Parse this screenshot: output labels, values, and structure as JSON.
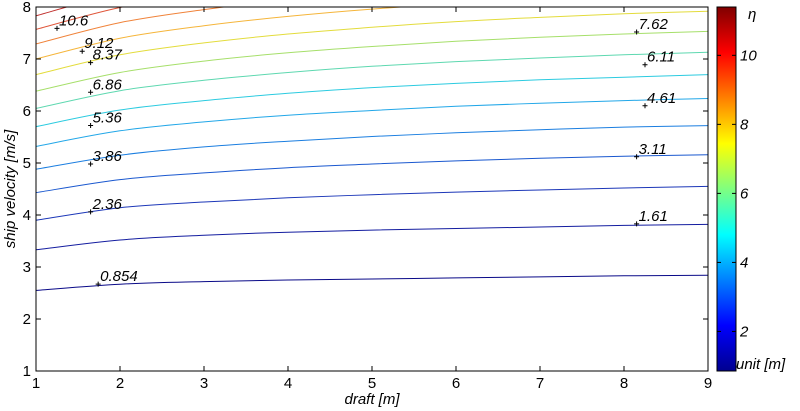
{
  "chart_data": {
    "type": "contour",
    "xlabel": "draft [m]",
    "ylabel": "ship velocity [m/s]",
    "xlim": [
      1,
      9
    ],
    "ylim": [
      1,
      8
    ],
    "x_ticks": [
      "1",
      "2",
      "3",
      "4",
      "5",
      "6",
      "7",
      "8",
      "9"
    ],
    "y_ticks": [
      "1",
      "2",
      "3",
      "4",
      "5",
      "6",
      "7",
      "8"
    ],
    "colorbar": {
      "label": "η",
      "unit_label": "unit [m]",
      "range": [
        0.854,
        11.4
      ],
      "ticks": [
        "2",
        "4",
        "6",
        "8",
        "10"
      ],
      "tick_values": [
        2,
        4,
        6,
        8,
        10
      ]
    },
    "x": [
      1,
      2,
      3,
      4,
      5,
      6,
      7,
      8,
      9
    ],
    "contours": [
      {
        "level": 0.854,
        "color": "#0a0a88",
        "y": [
          2.55,
          2.67,
          2.72,
          2.75,
          2.77,
          2.79,
          2.81,
          2.83,
          2.84
        ]
      },
      {
        "level": 1.61,
        "color": "#141da0",
        "y": [
          3.33,
          3.52,
          3.61,
          3.67,
          3.71,
          3.74,
          3.77,
          3.8,
          3.82
        ]
      },
      {
        "level": 2.36,
        "color": "#1c37b8",
        "y": [
          3.9,
          4.14,
          4.25,
          4.33,
          4.39,
          4.44,
          4.48,
          4.52,
          4.55
        ]
      },
      {
        "level": 3.11,
        "color": "#1a58cf",
        "y": [
          4.43,
          4.68,
          4.81,
          4.91,
          4.98,
          5.04,
          5.09,
          5.13,
          5.16
        ]
      },
      {
        "level": 3.86,
        "color": "#1b7ee0",
        "y": [
          4.88,
          5.15,
          5.31,
          5.42,
          5.51,
          5.58,
          5.64,
          5.69,
          5.72
        ]
      },
      {
        "level": 4.61,
        "color": "#22a7e8",
        "y": [
          5.32,
          5.62,
          5.79,
          5.92,
          6.01,
          6.09,
          6.15,
          6.2,
          6.24
        ]
      },
      {
        "level": 5.36,
        "color": "#2ccbe0",
        "y": [
          5.7,
          6.02,
          6.2,
          6.34,
          6.45,
          6.53,
          6.6,
          6.65,
          6.7
        ]
      },
      {
        "level": 6.11,
        "color": "#5ed8b0",
        "y": [
          6.05,
          6.39,
          6.59,
          6.74,
          6.86,
          6.95,
          7.02,
          7.08,
          7.13
        ]
      },
      {
        "level": 6.86,
        "color": "#a6df6a",
        "y": [
          6.38,
          6.74,
          6.96,
          7.12,
          7.24,
          7.34,
          7.42,
          7.48,
          7.53
        ]
      },
      {
        "level": 7.62,
        "color": "#e3dc3c",
        "y": [
          6.7,
          7.08,
          7.31,
          7.48,
          7.61,
          7.72,
          7.8,
          7.87,
          7.92
        ]
      },
      {
        "level": 8.37,
        "color": "#f5b53a",
        "y": [
          7.0,
          7.4,
          7.64,
          7.82,
          7.96,
          8.07,
          8.16,
          8.23,
          8.29
        ]
      },
      {
        "level": 9.12,
        "color": "#f0833a",
        "y": [
          7.29,
          7.7,
          7.95,
          8.14,
          8.29,
          8.4,
          8.5,
          8.57,
          8.63
        ]
      },
      {
        "level": 9.87,
        "color": "#e0563a",
        "y": [
          7.57,
          7.99,
          8.25,
          8.44,
          8.59,
          8.71,
          8.81,
          8.89,
          8.96
        ]
      },
      {
        "level": 10.6,
        "color": "#c0302d",
        "y": [
          7.83,
          8.27,
          8.54,
          8.74,
          8.9,
          9.03,
          9.13,
          9.21,
          9.28
        ]
      },
      {
        "level": 11.4,
        "color": "#971c1c",
        "y": [
          8.08,
          8.53,
          8.81,
          9.02,
          9.18,
          9.31,
          9.42,
          9.51,
          9.58
        ]
      }
    ],
    "contour_labels": [
      {
        "text": "0.854",
        "x": 1.74,
        "y": 2.67
      },
      {
        "text": "1.61",
        "x": 8.15,
        "y": 3.83
      },
      {
        "text": "2.36",
        "x": 1.65,
        "y": 4.06
      },
      {
        "text": "3.11",
        "x": 8.15,
        "y": 5.12
      },
      {
        "text": "3.86",
        "x": 1.65,
        "y": 4.98
      },
      {
        "text": "4.61",
        "x": 8.25,
        "y": 6.1
      },
      {
        "text": "5.36",
        "x": 1.65,
        "y": 5.72
      },
      {
        "text": "6.11",
        "x": 8.25,
        "y": 6.89
      },
      {
        "text": "6.86",
        "x": 1.65,
        "y": 6.36
      },
      {
        "text": "7.62",
        "x": 8.15,
        "y": 7.52
      },
      {
        "text": "8.37",
        "x": 1.65,
        "y": 6.93
      },
      {
        "text": "9.12",
        "x": 1.55,
        "y": 7.15
      },
      {
        "text": "10.6",
        "x": 1.25,
        "y": 7.59
      }
    ]
  }
}
